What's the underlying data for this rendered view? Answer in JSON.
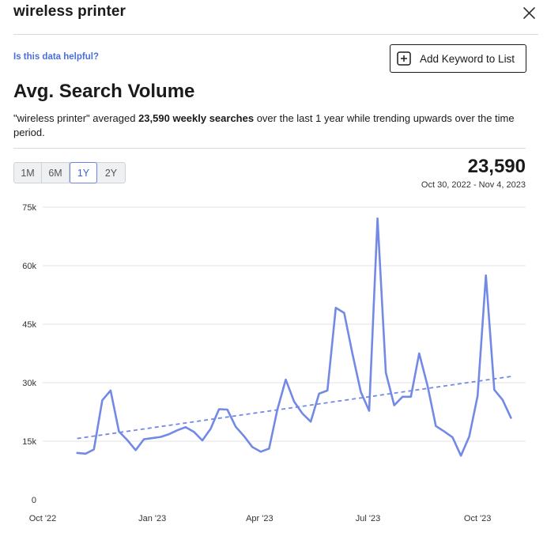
{
  "header": {
    "title": "wireless printer",
    "close_icon": "close-icon"
  },
  "helpful_link": "Is this data helpful?",
  "add_keyword_button": {
    "label": "Add Keyword to List",
    "icon": "plus-square-icon"
  },
  "section_title": "Avg. Search Volume",
  "summary": {
    "part1": "\"wireless printer\" averaged ",
    "bold": "23,590 weekly searches",
    "part2": " over the last 1 year while trending upwards over the time period."
  },
  "range_tabs": [
    {
      "label": "1M",
      "active": false
    },
    {
      "label": "6M",
      "active": false
    },
    {
      "label": "1Y",
      "active": true
    },
    {
      "label": "2Y",
      "active": false
    }
  ],
  "summary_value": "23,590",
  "date_range": "Oct 30, 2022 - Nov 4, 2023",
  "chart_data": {
    "type": "line",
    "title": "",
    "xlabel": "",
    "ylabel": "",
    "ylim": [
      0,
      75000
    ],
    "y_ticks": [
      0,
      15000,
      30000,
      45000,
      60000,
      75000
    ],
    "y_tick_labels": [
      "0",
      "15k",
      "30k",
      "45k",
      "60k",
      "75k"
    ],
    "x_ticks": [
      "2022-10-01",
      "2023-01-01",
      "2023-04-01",
      "2023-07-01",
      "2023-10-01"
    ],
    "x_tick_labels": [
      "Oct '22",
      "Jan '23",
      "Apr '23",
      "Jul '23",
      "Oct '23"
    ],
    "xlim": [
      "2022-10-01",
      "2023-11-15"
    ],
    "grid": true,
    "line_color": "#7289e6",
    "series": [
      {
        "x": [
          "2022-10-30",
          "2022-11-06",
          "2022-11-13",
          "2022-11-20",
          "2022-11-27",
          "2022-12-04",
          "2022-12-11",
          "2022-12-18",
          "2022-12-25",
          "2023-01-01",
          "2023-01-08",
          "2023-01-15",
          "2023-01-22",
          "2023-01-29",
          "2023-02-05",
          "2023-02-12",
          "2023-02-19",
          "2023-02-26",
          "2023-03-05",
          "2023-03-12",
          "2023-03-19",
          "2023-03-26",
          "2023-04-02",
          "2023-04-09",
          "2023-04-16",
          "2023-04-23",
          "2023-04-30",
          "2023-05-07",
          "2023-05-14",
          "2023-05-21",
          "2023-05-28",
          "2023-06-04",
          "2023-06-11",
          "2023-06-18",
          "2023-06-25",
          "2023-07-02",
          "2023-07-09",
          "2023-07-16",
          "2023-07-23",
          "2023-07-30",
          "2023-08-06",
          "2023-08-13",
          "2023-08-20",
          "2023-08-27",
          "2023-09-03",
          "2023-09-10",
          "2023-09-17",
          "2023-09-24",
          "2023-10-01",
          "2023-10-08",
          "2023-10-15",
          "2023-10-22",
          "2023-10-29"
        ],
        "values": [
          12000,
          11800,
          12900,
          25500,
          28000,
          17500,
          15300,
          12700,
          15500,
          15800,
          16100,
          16800,
          17800,
          18600,
          17400,
          15200,
          18200,
          23200,
          23100,
          18700,
          16300,
          13500,
          12300,
          13100,
          23100,
          30800,
          25200,
          22100,
          20000,
          27200,
          28000,
          49200,
          47900,
          37400,
          27600,
          22800,
          72100,
          32600,
          24200,
          26400,
          26400,
          37500,
          29200,
          18900,
          17500,
          16000,
          11300,
          16200,
          26600,
          57500,
          28200,
          25600,
          21000
        ]
      }
    ],
    "trendline": {
      "x": [
        "2022-10-30",
        "2023-10-29"
      ],
      "values": [
        15700,
        31600
      ],
      "style": "dashed"
    }
  }
}
